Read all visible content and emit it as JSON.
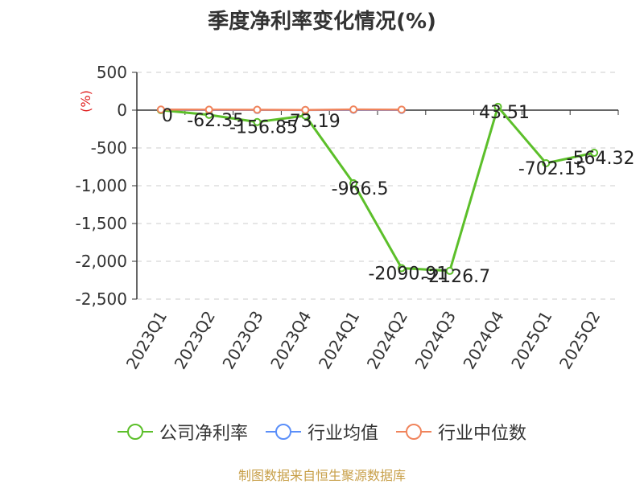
{
  "title": "季度净利率变化情况(%)",
  "source_note": "制图数据来自恒生聚源数据库",
  "colors": {
    "company": "#5cbf2a",
    "industry_avg": "#5b8ff9",
    "industry_median": "#f0845c",
    "grid": "#cccccc",
    "axis": "#333333",
    "unit": "#e02020"
  },
  "legend": [
    {
      "key": "company",
      "label": "公司净利率"
    },
    {
      "key": "industry_avg",
      "label": "行业均值"
    },
    {
      "key": "industry_median",
      "label": "行业中位数"
    }
  ],
  "chart_data": {
    "type": "line",
    "title": "季度净利率变化情况(%)",
    "ylabel": "(%)",
    "categories": [
      "2023Q1",
      "2023Q2",
      "2023Q3",
      "2023Q4",
      "2024Q1",
      "2024Q2",
      "2024Q3",
      "2024Q4",
      "2025Q1",
      "2025Q2"
    ],
    "ylim": [
      -2500,
      500
    ],
    "yticks": [
      500,
      0,
      -500,
      -1000,
      -1500,
      -2000,
      -2500
    ],
    "ytick_labels": [
      "500",
      "0",
      "-500",
      "-1,000",
      "-1,500",
      "-2,000",
      "-2,500"
    ],
    "grid": true,
    "legend_position": "bottom",
    "series": [
      {
        "name": "公司净利率",
        "key": "company",
        "values": [
          0,
          -62.35,
          -156.85,
          -73.19,
          -966.5,
          -2090.91,
          -2126.7,
          43.51,
          -702.15,
          -564.32
        ],
        "labels": [
          "0",
          "-62.35",
          "-156.85",
          "-73.19",
          "-966.5",
          "-2090.91",
          "-2126.7",
          "43.51",
          "-702.15",
          "-564.32"
        ]
      },
      {
        "name": "行业均值",
        "key": "industry_avg",
        "values": [
          5,
          3,
          2,
          1,
          4,
          3,
          null,
          null,
          null,
          null
        ]
      },
      {
        "name": "行业中位数",
        "key": "industry_median",
        "values": [
          8,
          6,
          5,
          3,
          9,
          7,
          null,
          null,
          null,
          null
        ]
      }
    ]
  }
}
